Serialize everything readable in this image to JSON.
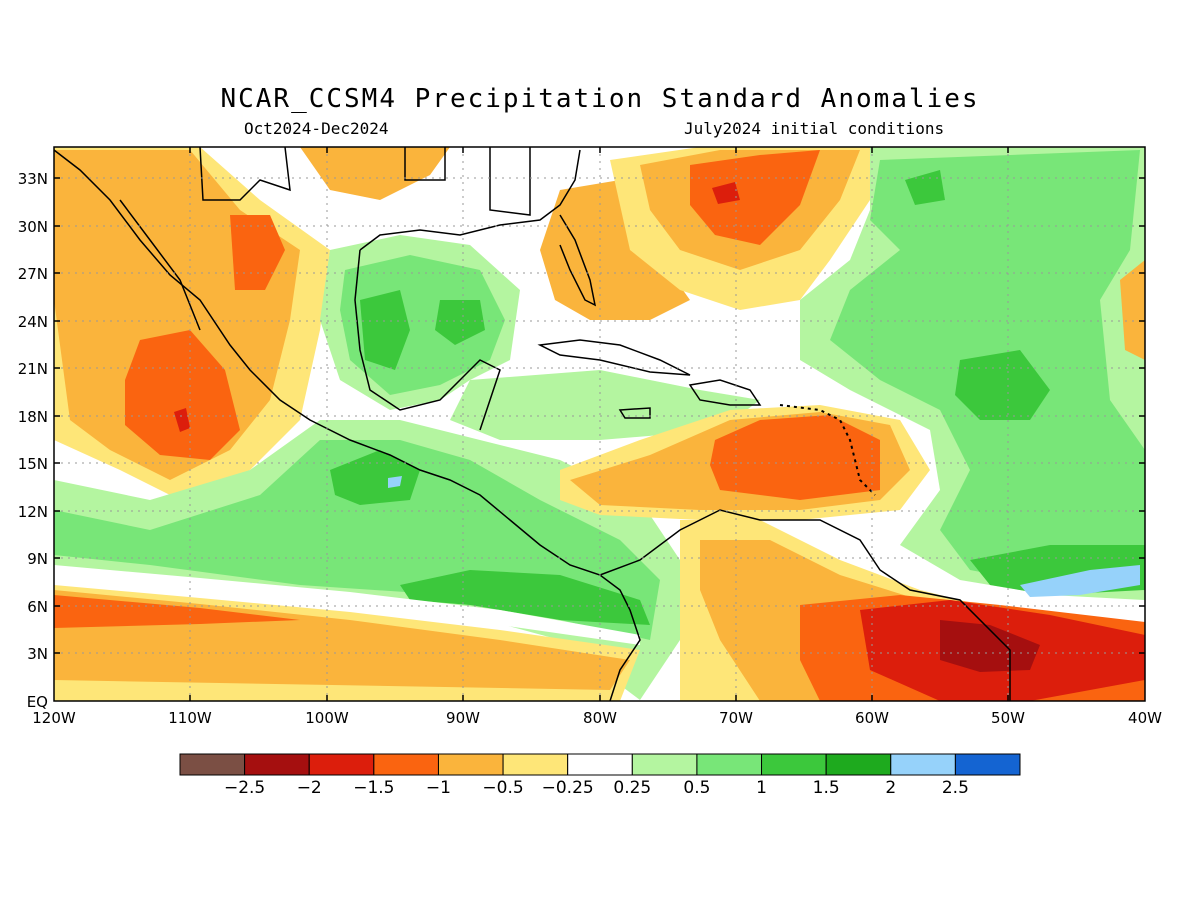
{
  "title": "NCAR_CCSM4 Precipitation Standard Anomalies",
  "subtitle_left": "Oct2024-Dec2024",
  "subtitle_right": "July2024 initial conditions",
  "map": {
    "lon_range": [
      -120,
      -40
    ],
    "lat_range": [
      0,
      35
    ],
    "lat_ticks": [
      "33N",
      "30N",
      "27N",
      "24N",
      "21N",
      "18N",
      "15N",
      "12N",
      "9N",
      "6N",
      "3N",
      "EQ"
    ],
    "lon_ticks": [
      "120W",
      "110W",
      "100W",
      "90W",
      "80W",
      "70W",
      "60W",
      "50W",
      "40W"
    ],
    "grid": true
  },
  "colorbar": {
    "colors": [
      "#7b4f44",
      "#a50f0f",
      "#dc1e0c",
      "#fa6410",
      "#fab43c",
      "#fee678",
      "#ffffff",
      "#b4f5a0",
      "#78e678",
      "#3cc83c",
      "#1eaa1e",
      "#96d2fa",
      "#1464d2"
    ],
    "labels": [
      "-2.5",
      "-2",
      "-1.5",
      "-1",
      "-0.5",
      "-0.25",
      "0.25",
      "0.5",
      "1",
      "1.5",
      "2",
      "2.5"
    ]
  }
}
